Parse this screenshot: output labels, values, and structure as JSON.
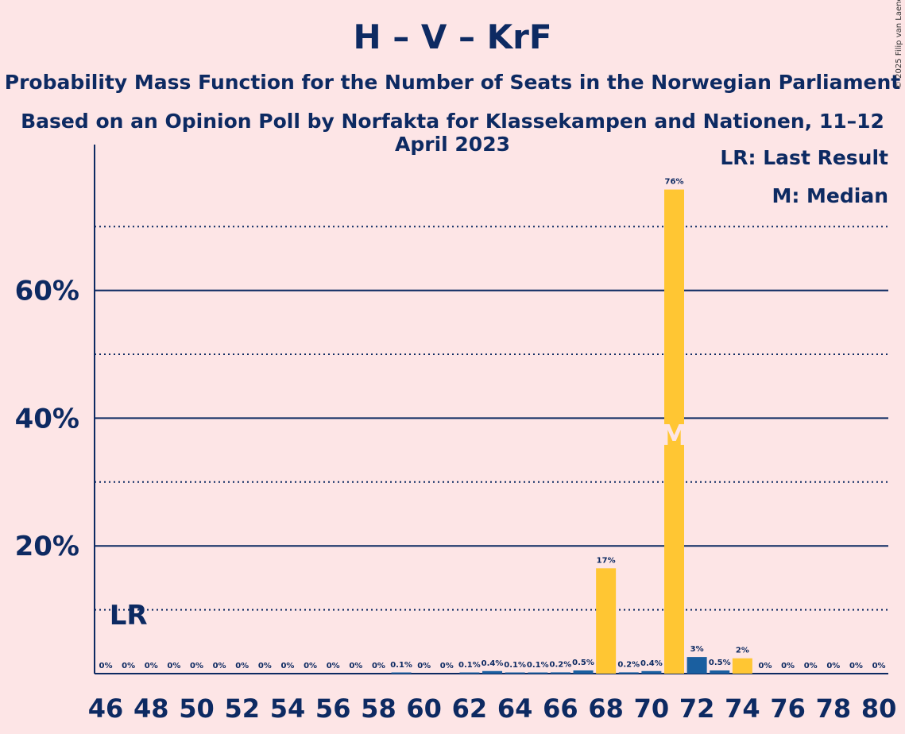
{
  "header": {
    "title": "H – V – KrF",
    "subtitle1": "Probability Mass Function for the Number of Seats in the Norwegian Parliament",
    "subtitle2": "Based on an Opinion Poll by Norfakta for Klassekampen and Nationen, 11–12 April 2023",
    "copyright": "© 2025 Filip van Laenen"
  },
  "legend": {
    "last_result": "LR: Last Result",
    "median": "M: Median"
  },
  "colors": {
    "background": "#fde5e6",
    "navy": "#0d2a62",
    "yellow": "#ffc633",
    "blue": "#1a5fa0"
  },
  "chart_data": {
    "type": "bar",
    "xlim": [
      46,
      80
    ],
    "ylim": [
      0,
      82
    ],
    "yticks_labeled": [
      "20%",
      "40%",
      "60%"
    ],
    "ytick_values": [
      20,
      40,
      60
    ],
    "minor_gridlines": [
      10,
      30,
      50,
      70
    ],
    "xtick_labels": [
      "46",
      "48",
      "50",
      "52",
      "54",
      "56",
      "58",
      "60",
      "62",
      "64",
      "66",
      "68",
      "70",
      "72",
      "74",
      "76",
      "78",
      "80"
    ],
    "last_result": {
      "seat": 47,
      "label": "LR"
    },
    "median": {
      "seat": 71,
      "label": "M"
    },
    "bars": [
      {
        "seat": 46,
        "value": 0,
        "label": "0%",
        "color": "blue"
      },
      {
        "seat": 47,
        "value": 0,
        "label": "0%",
        "color": "blue"
      },
      {
        "seat": 48,
        "value": 0,
        "label": "0%",
        "color": "blue"
      },
      {
        "seat": 49,
        "value": 0,
        "label": "0%",
        "color": "blue"
      },
      {
        "seat": 50,
        "value": 0,
        "label": "0%",
        "color": "blue"
      },
      {
        "seat": 51,
        "value": 0,
        "label": "0%",
        "color": "blue"
      },
      {
        "seat": 52,
        "value": 0,
        "label": "0%",
        "color": "blue"
      },
      {
        "seat": 53,
        "value": 0,
        "label": "0%",
        "color": "blue"
      },
      {
        "seat": 54,
        "value": 0,
        "label": "0%",
        "color": "blue"
      },
      {
        "seat": 55,
        "value": 0,
        "label": "0%",
        "color": "blue"
      },
      {
        "seat": 56,
        "value": 0,
        "label": "0%",
        "color": "blue"
      },
      {
        "seat": 57,
        "value": 0,
        "label": "0%",
        "color": "blue"
      },
      {
        "seat": 58,
        "value": 0,
        "label": "0%",
        "color": "blue"
      },
      {
        "seat": 59,
        "value": 0.1,
        "label": "0.1%",
        "color": "blue"
      },
      {
        "seat": 60,
        "value": 0,
        "label": "0%",
        "color": "blue"
      },
      {
        "seat": 61,
        "value": 0,
        "label": "0%",
        "color": "blue"
      },
      {
        "seat": 62,
        "value": 0.1,
        "label": "0.1%",
        "color": "blue"
      },
      {
        "seat": 63,
        "value": 0.4,
        "label": "0.4%",
        "color": "blue"
      },
      {
        "seat": 64,
        "value": 0.1,
        "label": "0.1%",
        "color": "blue"
      },
      {
        "seat": 65,
        "value": 0.1,
        "label": "0.1%",
        "color": "blue"
      },
      {
        "seat": 66,
        "value": 0.2,
        "label": "0.2%",
        "color": "blue"
      },
      {
        "seat": 67,
        "value": 0.5,
        "label": "0.5%",
        "color": "blue"
      },
      {
        "seat": 68,
        "value": 16.5,
        "label": "17%",
        "color": "yellow"
      },
      {
        "seat": 69,
        "value": 0.2,
        "label": "0.2%",
        "color": "blue"
      },
      {
        "seat": 70,
        "value": 0.4,
        "label": "0.4%",
        "color": "blue"
      },
      {
        "seat": 71,
        "value": 75.8,
        "label": "76%",
        "color": "yellow"
      },
      {
        "seat": 72,
        "value": 2.6,
        "label": "3%",
        "color": "blue"
      },
      {
        "seat": 73,
        "value": 0.5,
        "label": "0.5%",
        "color": "blue"
      },
      {
        "seat": 74,
        "value": 2.4,
        "label": "2%",
        "color": "yellow"
      },
      {
        "seat": 75,
        "value": 0,
        "label": "0%",
        "color": "blue"
      },
      {
        "seat": 76,
        "value": 0,
        "label": "0%",
        "color": "blue"
      },
      {
        "seat": 77,
        "value": 0,
        "label": "0%",
        "color": "blue"
      },
      {
        "seat": 78,
        "value": 0,
        "label": "0%",
        "color": "blue"
      },
      {
        "seat": 79,
        "value": 0,
        "label": "0%",
        "color": "blue"
      },
      {
        "seat": 80,
        "value": 0,
        "label": "0%",
        "color": "blue"
      }
    ]
  }
}
